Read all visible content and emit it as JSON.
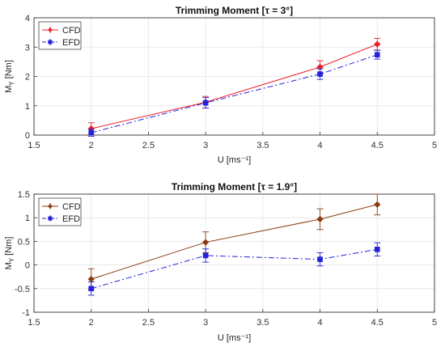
{
  "chart_data": [
    {
      "type": "line",
      "title": "Trimming Moment [τ = 3°]",
      "xlabel": "U [ms⁻¹]",
      "ylabel": "M",
      "ylabel_sub": "Y",
      "ylabel_unit": " [Nm]",
      "xlim": [
        1.5,
        5
      ],
      "ylim": [
        0,
        4
      ],
      "xticks": [
        "1.5",
        "2",
        "2.5",
        "3",
        "3.5",
        "4",
        "4.5",
        "5"
      ],
      "yticks": [
        "0",
        "1",
        "2",
        "3",
        "4"
      ],
      "grid": true,
      "legend_position": "top-left",
      "x": [
        2,
        3,
        4,
        4.5
      ],
      "series": [
        {
          "name": "CFD",
          "values": [
            0.22,
            1.12,
            2.32,
            3.1
          ],
          "error": [
            0.2,
            0.2,
            0.22,
            0.2
          ],
          "color": "#e8212b",
          "style": "solid",
          "marker": "diamond"
        },
        {
          "name": "EFD",
          "values": [
            0.08,
            1.1,
            2.08,
            2.74
          ],
          "error": [
            0.12,
            0.18,
            0.18,
            0.15
          ],
          "color": "#2222dd",
          "style": "dashdot",
          "marker": "square"
        }
      ]
    },
    {
      "type": "line",
      "title": "Trimming Moment [τ = 1.9°]",
      "xlabel": "U [ms⁻¹]",
      "ylabel": "M",
      "ylabel_sub": "Y",
      "ylabel_unit": " [Nm]",
      "xlim": [
        1.5,
        5
      ],
      "ylim": [
        -1,
        1.5
      ],
      "xticks": [
        "1.5",
        "2",
        "2.5",
        "3",
        "3.5",
        "4",
        "4.5",
        "5"
      ],
      "yticks": [
        "-1",
        "-0.5",
        "0",
        "0.5",
        "1",
        "1.5"
      ],
      "grid": true,
      "legend_position": "top-left",
      "x": [
        2,
        3,
        4,
        4.5
      ],
      "series": [
        {
          "name": "CFD",
          "values": [
            -0.3,
            0.48,
            0.97,
            1.28
          ],
          "error": [
            0.22,
            0.22,
            0.22,
            0.22
          ],
          "color": "#8b3a0f",
          "style": "solid",
          "marker": "diamond"
        },
        {
          "name": "EFD",
          "values": [
            -0.5,
            0.2,
            0.12,
            0.33
          ],
          "error": [
            0.14,
            0.14,
            0.14,
            0.14
          ],
          "color": "#2222dd",
          "style": "dashdot",
          "marker": "square"
        }
      ]
    }
  ]
}
